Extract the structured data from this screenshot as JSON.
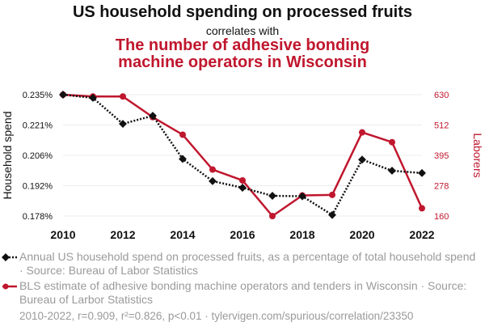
{
  "header": {
    "title": "US household spending on processed fruits",
    "correlates": "correlates with",
    "title2_line1": "The number of adhesive bonding",
    "title2_line2": "machine operators in Wisconsin"
  },
  "colors": {
    "series1": "#111111",
    "series2": "#c0172e"
  },
  "chart_data": {
    "type": "line",
    "x": [
      2010,
      2011,
      2012,
      2013,
      2014,
      2015,
      2016,
      2017,
      2018,
      2019,
      2020,
      2021,
      2022
    ],
    "xticks": [
      "2010",
      "2012",
      "2014",
      "2016",
      "2018",
      "2020",
      "2022"
    ],
    "xlim": [
      2010,
      2022
    ],
    "left_axis": {
      "label": "Household spend",
      "ylim": [
        0.178,
        0.235
      ],
      "ticks": [
        "0.178%",
        "0.192%",
        "0.206%",
        "0.221%",
        "0.235%"
      ]
    },
    "right_axis": {
      "label": "Laborers",
      "ylim": [
        160,
        630
      ],
      "ticks": [
        "160",
        "278",
        "395",
        "512",
        "630"
      ]
    },
    "series": [
      {
        "name": "Household spend",
        "axis": "left",
        "style": "dotted-diamond",
        "values": [
          0.235,
          0.2335,
          0.2213,
          0.2251,
          0.2048,
          0.1944,
          0.1913,
          0.1875,
          0.1873,
          0.1785,
          0.2045,
          0.1993,
          0.1982
        ]
      },
      {
        "name": "Laborers",
        "axis": "right",
        "style": "solid-circle",
        "values": [
          630,
          623,
          623,
          543,
          475,
          340,
          298,
          160,
          240,
          242,
          484,
          446,
          190
        ]
      }
    ]
  },
  "legend": {
    "item1": "Annual US household spend on processed fruits, as a percentage of total household spend · Source: Bureau of Labor Statistics",
    "item2": "BLS estimate of adhesive bonding machine operators and tenders in Wisconsin · Source: Bureau of Larbor Statistics"
  },
  "footer": "2010-2022, r=0.909, r²=0.826, p<0.01 · tylervigen.com/spurious/correlation/23350"
}
